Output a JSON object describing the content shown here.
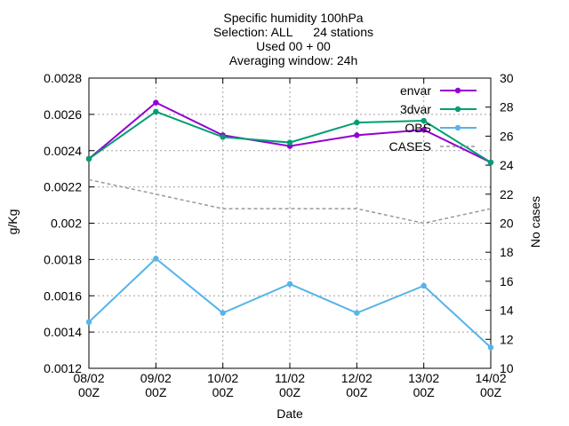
{
  "chart_data": {
    "type": "line",
    "title_lines": [
      "Specific humidity 100hPa",
      "Selection: ALL      24 stations",
      "Used 00 + 00",
      "Averaging window: 24h"
    ],
    "xlabel": "Date",
    "ylabel": "g/Kg",
    "y2label": "No cases",
    "categories": [
      "08/02\n00Z",
      "09/02\n00Z",
      "10/02\n00Z",
      "11/02\n00Z",
      "12/02\n00Z",
      "13/02\n00Z",
      "14/02\n00Z"
    ],
    "ylim": [
      0.0012,
      0.0028
    ],
    "yticks": [
      "0.0012",
      "0.0014",
      "0.0016",
      "0.0018",
      "0.002",
      "0.0022",
      "0.0024",
      "0.0026",
      "0.0028"
    ],
    "y2lim": [
      10,
      30
    ],
    "y2ticks": [
      "10",
      "12",
      "14",
      "16",
      "18",
      "20",
      "22",
      "24",
      "26",
      "28",
      "30"
    ],
    "grid": true,
    "legend_position": "top-right",
    "series": [
      {
        "name": "envar",
        "color": "#9400d3",
        "axis": "y",
        "dash": false,
        "marker": true,
        "values": [
          0.002355,
          0.002665,
          0.002485,
          0.002425,
          0.002485,
          0.002515,
          0.002335
        ]
      },
      {
        "name": "3dvar",
        "color": "#009e73",
        "axis": "y",
        "dash": false,
        "marker": true,
        "values": [
          0.002355,
          0.002615,
          0.002475,
          0.002445,
          0.002555,
          0.002565,
          0.002335
        ]
      },
      {
        "name": "OBS",
        "color": "#56b4e9",
        "axis": "y",
        "dash": false,
        "marker": true,
        "values": [
          0.001455,
          0.001805,
          0.001505,
          0.001665,
          0.001505,
          0.001655,
          0.001315
        ]
      },
      {
        "name": "CASES",
        "color": "#999999",
        "axis": "y2",
        "dash": true,
        "marker": false,
        "values": [
          23,
          22,
          21,
          21,
          21,
          20,
          21
        ]
      }
    ]
  }
}
